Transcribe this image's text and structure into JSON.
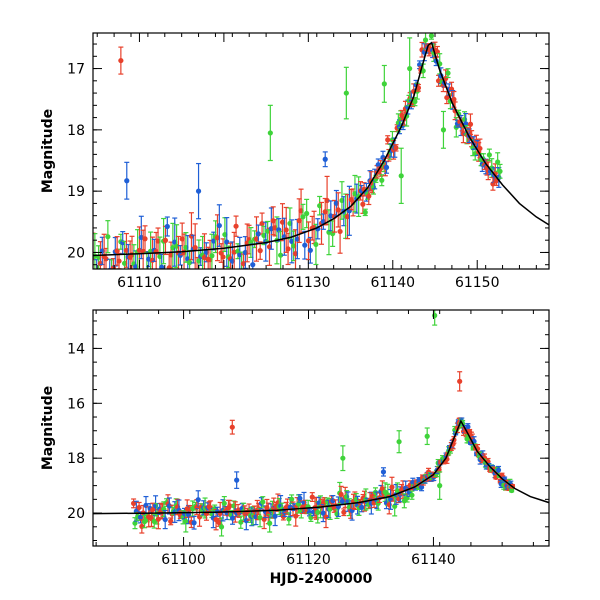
{
  "chart_data": [
    {
      "type": "scatter",
      "panel": "top",
      "title": "",
      "xlabel": "",
      "ylabel": "Magnitude",
      "xlim": [
        61104.5,
        61158.5
      ],
      "ylim": [
        20.27,
        16.42
      ],
      "y_inverted": true,
      "x_ticks": [
        61110,
        61120,
        61130,
        61140,
        61150
      ],
      "x_tick_labels": [
        "61110",
        "61120",
        "61130",
        "61140",
        "61150"
      ],
      "y_ticks": [
        17,
        18,
        19,
        20
      ],
      "y_tick_labels": [
        "17",
        "18",
        "19",
        "20"
      ],
      "series_colors": [
        "#e8402b",
        "#1f5fd6",
        "#3fd33a"
      ],
      "model_curve": [
        [
          61104.5,
          20.05
        ],
        [
          61110,
          20.02
        ],
        [
          61115,
          19.99
        ],
        [
          61120,
          19.93
        ],
        [
          61125,
          19.84
        ],
        [
          61128,
          19.75
        ],
        [
          61131,
          19.6
        ],
        [
          61133,
          19.45
        ],
        [
          61135,
          19.25
        ],
        [
          61137,
          18.95
        ],
        [
          61139,
          18.5
        ],
        [
          61141,
          17.95
        ],
        [
          61142.5,
          17.45
        ],
        [
          61143.5,
          16.95
        ],
        [
          61144.2,
          16.62
        ],
        [
          61144.6,
          16.58
        ],
        [
          61145.5,
          17.0
        ],
        [
          61147,
          17.55
        ],
        [
          61149,
          18.1
        ],
        [
          61151,
          18.55
        ],
        [
          61153,
          18.9
        ],
        [
          61155,
          19.2
        ],
        [
          61157,
          19.42
        ],
        [
          61158.5,
          19.55
        ]
      ],
      "outliers": [
        {
          "series": "red",
          "x": 61107.8,
          "y": 16.87,
          "err": 0.22
        },
        {
          "series": "blue",
          "x": 61108.5,
          "y": 18.83,
          "err": 0.3
        },
        {
          "series": "blue",
          "x": 61117,
          "y": 19.0,
          "err": 0.45
        },
        {
          "series": "green",
          "x": 61125.5,
          "y": 18.05,
          "err": 0.45
        },
        {
          "series": "green",
          "x": 61134.5,
          "y": 17.4,
          "err": 0.42
        },
        {
          "series": "blue",
          "x": 61132,
          "y": 18.48,
          "err": 0.12
        },
        {
          "series": "green",
          "x": 61139,
          "y": 17.25,
          "err": 0.3
        },
        {
          "series": "green",
          "x": 61141,
          "y": 18.75,
          "err": 0.45
        },
        {
          "series": "green",
          "x": 61142,
          "y": 17.0,
          "err": 0.5
        },
        {
          "series": "green",
          "x": 61146,
          "y": 18.0,
          "err": 0.3
        }
      ]
    },
    {
      "type": "scatter",
      "panel": "bottom",
      "title": "",
      "xlabel": "HJD-2400000",
      "ylabel": "Magnitude",
      "xlim": [
        61085.5,
        61158.5
      ],
      "ylim": [
        21.2,
        12.6
      ],
      "y_inverted": true,
      "x_ticks": [
        61100,
        61120,
        61140
      ],
      "x_tick_labels": [
        "61100",
        "61120",
        "61140"
      ],
      "y_ticks": [
        14,
        16,
        18,
        20
      ],
      "y_tick_labels": [
        "14",
        "16",
        "18",
        "20"
      ],
      "series_colors": [
        "#e8402b",
        "#1f5fd6",
        "#3fd33a"
      ],
      "model_curve": [
        [
          61085.5,
          20.02
        ],
        [
          61095,
          20.0
        ],
        [
          61105,
          19.97
        ],
        [
          61115,
          19.9
        ],
        [
          61122,
          19.78
        ],
        [
          61128,
          19.62
        ],
        [
          61133,
          19.4
        ],
        [
          61137,
          19.05
        ],
        [
          61140,
          18.6
        ],
        [
          61142,
          18.0
        ],
        [
          61143.5,
          17.15
        ],
        [
          61144.4,
          16.65
        ],
        [
          61145.5,
          17.1
        ],
        [
          61147,
          17.75
        ],
        [
          61149,
          18.3
        ],
        [
          61151,
          18.75
        ],
        [
          61153,
          19.1
        ],
        [
          61155.5,
          19.4
        ],
        [
          61158.5,
          19.62
        ]
      ],
      "outliers": [
        {
          "series": "green",
          "x": 61140.2,
          "y": 12.8,
          "err": 0.35
        },
        {
          "series": "red",
          "x": 61107.8,
          "y": 16.87,
          "err": 0.25
        },
        {
          "series": "red",
          "x": 61144.2,
          "y": 15.2,
          "err": 0.35
        },
        {
          "series": "green",
          "x": 61134.5,
          "y": 17.4,
          "err": 0.4
        },
        {
          "series": "green",
          "x": 61125.5,
          "y": 18.0,
          "err": 0.45
        },
        {
          "series": "blue",
          "x": 61108.5,
          "y": 18.8,
          "err": 0.3
        },
        {
          "series": "blue",
          "x": 61132,
          "y": 18.5,
          "err": 0.15
        },
        {
          "series": "green",
          "x": 61139,
          "y": 17.2,
          "err": 0.3
        },
        {
          "series": "green",
          "x": 61141,
          "y": 19.0,
          "err": 0.5
        }
      ]
    }
  ]
}
